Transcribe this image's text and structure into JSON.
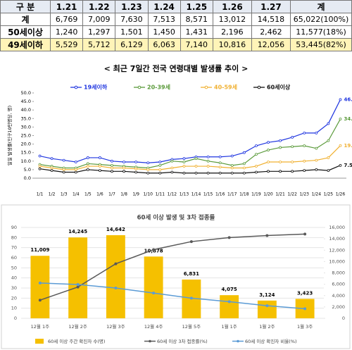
{
  "table": {
    "header": [
      "구 분",
      "1.21",
      "1.22",
      "1.23",
      "1.24",
      "1.25",
      "1.26",
      "1.27",
      "계"
    ],
    "rows": [
      [
        "계",
        "6,769",
        "7,009",
        "7,630",
        "7,513",
        "8,571",
        "13,012",
        "14,518",
        "65,022(100%)"
      ],
      [
        "50세이상",
        "1,240",
        "1,297",
        "1,501",
        "1,450",
        "1,431",
        "2,196",
        "2,462",
        "11,577(18%)"
      ],
      [
        "49세이하",
        "5,529",
        "5,712",
        "6,129",
        "6,063",
        "7,140",
        "10,816",
        "12,056",
        "53,445(82%)"
      ]
    ]
  },
  "chart_data": [
    {
      "type": "line",
      "title": "< 최근 7일간 전국 연령대별 발생률 추이 >",
      "y_label": "일일 발생률(인구10만명당, 명)",
      "categories": [
        "1/1",
        "1/2",
        "1/3",
        "1/4",
        "1/5",
        "1/6",
        "1/7",
        "1/8",
        "1/9",
        "1/10",
        "1/11",
        "1/12",
        "1/13",
        "1/14",
        "1/15",
        "1/16",
        "1/17",
        "1/18",
        "1/19",
        "1/20",
        "1/21",
        "1/22",
        "1/23",
        "1/24",
        "1/25",
        "1/26"
      ],
      "series": [
        {
          "name": "19세이하",
          "color": "#1f35e0",
          "values": [
            13.0,
            11.5,
            10.5,
            9.5,
            12.0,
            12.0,
            10.0,
            9.5,
            9.5,
            9.0,
            9.5,
            11.0,
            11.5,
            12.5,
            12.5,
            12.5,
            13.0,
            15.0,
            19.0,
            21.0,
            22.0,
            24.0,
            26.5,
            26.5,
            32.0,
            46.1
          ]
        },
        {
          "name": "20-39세",
          "color": "#5a9a3a",
          "values": [
            8.0,
            7.0,
            6.0,
            6.0,
            8.5,
            8.0,
            7.5,
            7.0,
            6.5,
            6.0,
            7.5,
            10.0,
            9.5,
            11.5,
            10.0,
            9.0,
            7.5,
            8.5,
            14.0,
            16.5,
            18.0,
            18.5,
            19.0,
            17.5,
            22.0,
            34.7
          ]
        },
        {
          "name": "40-59세",
          "color": "#f0b030",
          "values": [
            7.0,
            6.0,
            5.0,
            5.0,
            7.0,
            7.0,
            6.0,
            6.0,
            5.5,
            5.0,
            5.0,
            6.0,
            7.0,
            7.0,
            7.0,
            6.5,
            6.0,
            6.0,
            7.0,
            9.5,
            9.5,
            9.5,
            10.0,
            10.5,
            12.0,
            19.1
          ]
        },
        {
          "name": "60세이상",
          "color": "#111111",
          "values": [
            5.5,
            4.5,
            3.5,
            3.5,
            5.0,
            4.5,
            4.0,
            4.0,
            3.5,
            3.0,
            3.0,
            3.5,
            3.0,
            3.0,
            3.0,
            3.0,
            3.0,
            3.0,
            3.5,
            4.0,
            4.0,
            4.0,
            4.5,
            5.0,
            4.5,
            7.5
          ]
        }
      ],
      "ylim": [
        0,
        50
      ],
      "yticks": [
        {
          "value": 0,
          "label": "0.0"
        },
        {
          "value": 5,
          "label": "5.0"
        },
        {
          "value": 10,
          "label": "10.0"
        },
        {
          "value": 15,
          "label": "15.0"
        },
        {
          "value": 20,
          "label": "20.0"
        },
        {
          "value": 25,
          "label": "25.0"
        },
        {
          "value": 30,
          "label": "30.0"
        },
        {
          "value": 35,
          "label": "35.0"
        },
        {
          "value": 40,
          "label": "40.0"
        },
        {
          "value": 45,
          "label": "45.0"
        },
        {
          "value": 50,
          "label": "50.0"
        }
      ],
      "grid": false
    },
    {
      "type": "combo",
      "title": "60세 이상 발생 및 3차 접종률",
      "categories": [
        "12월 1주",
        "12월 2주",
        "12월 3주",
        "12월 4주",
        "12월 5주",
        "1월 1주",
        "1월 2주",
        "1월 3주"
      ],
      "series": [
        {
          "name": "60세 이상 주간 확진자 수(명)",
          "type": "bar",
          "axis": "y2",
          "color": "#f5c000",
          "values": [
            11009,
            14245,
            14642,
            10878,
            6831,
            4075,
            3124,
            3423
          ],
          "value_labels": [
            "11,009",
            "14,245",
            "14,642",
            "10,878",
            "6,831",
            "4,075",
            "3,124",
            "3,423"
          ]
        },
        {
          "name": "60세 이상 3차 접종률(%)",
          "type": "line",
          "color": "#595959",
          "values": [
            18,
            31,
            54,
            68,
            76,
            80,
            82,
            83.5
          ]
        },
        {
          "name": "60세 이상 확진자 비율(%)",
          "type": "line",
          "color": "#5b9bd5",
          "values": [
            35,
            33.5,
            30,
            25,
            20,
            16.5,
            12.5,
            9.5
          ]
        }
      ],
      "ylim": [
        0,
        90
      ],
      "yticks": [
        0,
        10,
        20,
        30,
        40,
        50,
        60,
        70,
        80,
        90
      ],
      "y2lim": [
        0,
        16000
      ],
      "y2ticks": [
        0,
        {
          "value": 2000,
          "label": "2,000"
        },
        {
          "value": 4000,
          "label": "4,000"
        },
        {
          "value": 6000,
          "label": "6,000"
        },
        {
          "value": 8000,
          "label": "8,000"
        },
        {
          "value": 10000,
          "label": "10,000"
        },
        {
          "value": 12000,
          "label": "12,000"
        },
        {
          "value": 14000,
          "label": "14,000"
        },
        {
          "value": 16000,
          "label": "16,000"
        }
      ],
      "grid": true
    }
  ]
}
